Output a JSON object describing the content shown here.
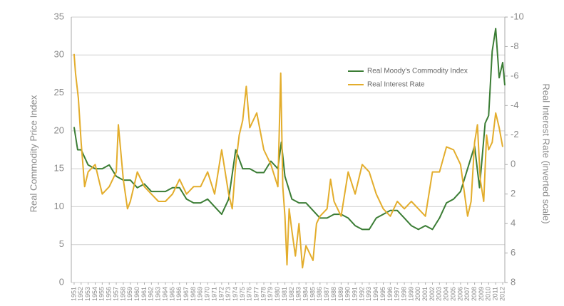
{
  "chart_data": {
    "type": "line",
    "ylabel": "Real Commodity Price Index",
    "y2label": "Real Interest Rate (inverted scale)",
    "xlim": [
      1950.6,
      2012.3
    ],
    "xticks": [
      1951,
      1952,
      1953,
      1954,
      1955,
      1956,
      1957,
      1958,
      1959,
      1960,
      1961,
      1962,
      1963,
      1964,
      1965,
      1966,
      1967,
      1968,
      1969,
      1970,
      1971,
      1972,
      1973,
      1974,
      1975,
      1976,
      1977,
      1978,
      1979,
      1980,
      1981,
      1982,
      1983,
      1984,
      1985,
      1986,
      1987,
      1988,
      1989,
      1990,
      1991,
      1992,
      1993,
      1994,
      1995,
      1996,
      1997,
      1998,
      1999,
      2000,
      2001,
      2002,
      2003,
      2004,
      2005,
      2006,
      2007,
      2008,
      2009,
      2010,
      2011,
      2012
    ],
    "ylim": [
      0,
      35
    ],
    "yticks": [
      0,
      5,
      10,
      15,
      20,
      25,
      30,
      35
    ],
    "y2lim": [
      8,
      -10
    ],
    "y2ticks": [
      -10,
      -8,
      -6,
      -4,
      -2,
      0,
      2,
      4,
      6,
      8
    ],
    "grid": true,
    "legend_loc": "upper right",
    "series": [
      {
        "name": "Real Moody's Commodity Index",
        "color": "#3b7d35",
        "x": [
          1951,
          1951.5,
          1952,
          1953,
          1954,
          1955,
          1956,
          1957,
          1958,
          1959,
          1960,
          1961,
          1962,
          1963,
          1964,
          1965,
          1966,
          1967,
          1968,
          1969,
          1970,
          1971,
          1972,
          1973,
          1974,
          1975,
          1976,
          1977,
          1978,
          1979,
          1980,
          1980.5,
          1981,
          1982,
          1983,
          1984,
          1985,
          1986,
          1987,
          1988,
          1989,
          1990,
          1991,
          1992,
          1993,
          1994,
          1995,
          1996,
          1997,
          1998,
          1999,
          2000,
          2001,
          2002,
          2003,
          2004,
          2005,
          2006,
          2007,
          2008,
          2008.7,
          2009.5,
          2010,
          2010.5,
          2011,
          2011.5,
          2012,
          2012.3
        ],
        "values": [
          20.5,
          17.5,
          17.5,
          15.5,
          15,
          15,
          15.5,
          14,
          13.5,
          13.5,
          12.5,
          13,
          12,
          12,
          12,
          12.5,
          12.5,
          11,
          10.5,
          10.5,
          11,
          10,
          9,
          11,
          17.5,
          15,
          15,
          14.5,
          14.5,
          16,
          15,
          18.5,
          14,
          11,
          10.5,
          10.5,
          9.5,
          8.5,
          8.5,
          9,
          9,
          8.5,
          7.5,
          7,
          7,
          8.5,
          9,
          9.5,
          9.5,
          8.5,
          7.5,
          7,
          7.5,
          7,
          8.5,
          10.5,
          11,
          12,
          15,
          18,
          12.5,
          21,
          22,
          30.5,
          33.5,
          27,
          29,
          26
        ]
      },
      {
        "name": "Real Interest Rate",
        "color": "#e3ad2c",
        "axis": "y2",
        "x": [
          1951,
          1951.2,
          1951.6,
          1952,
          1952.5,
          1953,
          1954,
          1955,
          1956,
          1957,
          1957.3,
          1958,
          1958.6,
          1959,
          1960,
          1961,
          1962,
          1963,
          1964,
          1965,
          1966,
          1967,
          1968,
          1969,
          1970,
          1971,
          1972,
          1972.5,
          1973,
          1973.5,
          1974,
          1974.5,
          1975,
          1975.5,
          1976,
          1977,
          1978,
          1979,
          1980,
          1980.4,
          1980.7,
          1981,
          1981.3,
          1981.6,
          1982,
          1982.5,
          1983,
          1983.5,
          1984,
          1985,
          1985.5,
          1986,
          1987,
          1987.5,
          1988,
          1989,
          1990,
          1991,
          1992,
          1993,
          1994,
          1995,
          1996,
          1997,
          1998,
          1999,
          2000,
          2001,
          2002,
          2003,
          2004,
          2005,
          2006,
          2007,
          2007.5,
          2008,
          2008.4,
          2008.8,
          2009.3,
          2009.7,
          2010,
          2010.5,
          2011,
          2011.5,
          2012
        ],
        "values": [
          -7.5,
          -6.2,
          -4.5,
          -1.5,
          1.5,
          0.5,
          0,
          2,
          1.5,
          0.5,
          -2.7,
          1,
          3,
          2.5,
          0.5,
          1.5,
          2,
          2.5,
          2.5,
          2,
          1,
          2,
          1.5,
          1.5,
          0.5,
          2,
          -1,
          0.5,
          2,
          3,
          0,
          -2,
          -3,
          -5.3,
          -2.5,
          -3.5,
          -1,
          0,
          1.5,
          -6.2,
          1.5,
          3.5,
          6.8,
          3,
          4.5,
          6.2,
          4,
          7,
          5.5,
          6.5,
          4,
          3.5,
          3,
          1,
          2.5,
          3.5,
          0.5,
          2,
          0,
          0.5,
          2,
          3,
          3.5,
          2.5,
          3,
          2.5,
          3,
          3.5,
          0.5,
          0.5,
          -1.2,
          -1,
          0,
          3.5,
          2.5,
          -1.5,
          -2.7,
          1,
          2.5,
          -2,
          -1,
          -1.5,
          -3.5,
          -2.5,
          -1.2
        ]
      }
    ]
  }
}
